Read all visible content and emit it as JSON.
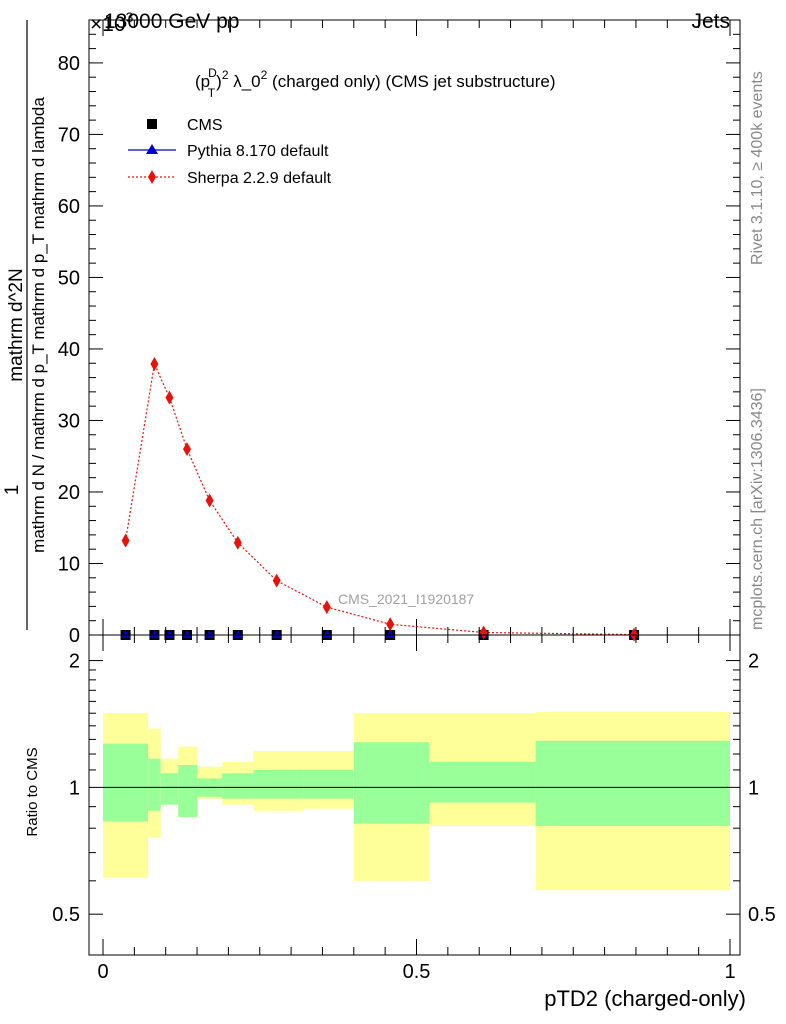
{
  "header": {
    "energy": "13000 GeV pp",
    "exponent": "×10",
    "exponent_power": "3",
    "process": "Jets"
  },
  "side_labels": {
    "rivet": "Rivet 3.1.10, ≥ 400k events",
    "mcplots": "mcplots.cern.ch [arXiv:1306.3436]"
  },
  "watermark": "CMS_2021_I1920187",
  "chart_data": [
    {
      "type": "scatter",
      "panel": "main",
      "title_parts": {
        "p": "(p",
        "sup_d": "D",
        "sub_t": "T",
        "close": ")",
        "sup_2": "2",
        "lambda": " λ_0",
        "sup_2b": "2",
        "rest": " (charged only) (CMS jet substructure)"
      },
      "ylabel_num": "1",
      "ylabel_den": "mathrm d N / mathrm d p_T mathrm d p_T mathrm d lambda",
      "ylabel_right": "mathrm d^2N",
      "xlim": [
        0,
        1
      ],
      "ylim": [
        0,
        86000
      ],
      "yticks": [
        0,
        10000,
        20000,
        30000,
        40000,
        50000,
        60000,
        70000,
        80000
      ],
      "ytick_labels": [
        "0",
        "10",
        "20",
        "30",
        "40",
        "50",
        "60",
        "70",
        "80"
      ],
      "legend": [
        {
          "label": "CMS",
          "marker": "square",
          "color": "#000000"
        },
        {
          "label": "Pythia 8.170 default",
          "marker": "triangle",
          "color": "#0000cc"
        },
        {
          "label": "Sherpa 2.2.9 default",
          "marker": "diamond",
          "color": "#e8120c"
        }
      ],
      "series": [
        {
          "name": "CMS",
          "x": [
            0.036,
            0.082,
            0.106,
            0.134,
            0.17,
            0.215,
            0.277,
            0.357,
            0.458,
            0.607,
            0.847
          ],
          "y": [
            0,
            0,
            0,
            0,
            0,
            0,
            0,
            0,
            0,
            0,
            0
          ]
        },
        {
          "name": "Pythia 8.170 default",
          "x": [
            0.036,
            0.082,
            0.106,
            0.134,
            0.17,
            0.215,
            0.277,
            0.357,
            0.458,
            0.607,
            0.847
          ],
          "y": [
            0,
            0,
            0,
            0,
            0,
            0,
            0,
            0,
            0,
            0,
            0
          ]
        },
        {
          "name": "Sherpa 2.2.9 default",
          "x": [
            0.036,
            0.082,
            0.106,
            0.134,
            0.17,
            0.215,
            0.277,
            0.357,
            0.458,
            0.607,
            0.847
          ],
          "y": [
            13200,
            37900,
            33200,
            26000,
            18800,
            12900,
            7600,
            3900,
            1500,
            350,
            60
          ]
        }
      ]
    },
    {
      "type": "area",
      "panel": "ratio",
      "ylabel": "Ratio to CMS",
      "xlabel": "pTD2 (charged-only)",
      "xlim": [
        0,
        1
      ],
      "ylim": [
        0.4,
        2.3
      ],
      "yticks": [
        0.5,
        1,
        2
      ],
      "ytick_labels": [
        "0.5",
        "1",
        "2"
      ],
      "xticks": [
        0,
        0.5,
        1
      ],
      "xtick_labels": [
        "0",
        "0.5",
        "1"
      ],
      "bins": [
        {
          "lo": 0.0,
          "hi": 0.072,
          "inner": [
            0.83,
            1.27
          ],
          "outer": [
            0.61,
            1.5
          ]
        },
        {
          "lo": 0.072,
          "hi": 0.092,
          "inner": [
            0.88,
            1.17
          ],
          "outer": [
            0.76,
            1.38
          ]
        },
        {
          "lo": 0.092,
          "hi": 0.12,
          "inner": [
            0.91,
            1.08
          ],
          "outer": [
            0.91,
            1.17
          ]
        },
        {
          "lo": 0.12,
          "hi": 0.15,
          "inner": [
            0.85,
            1.13
          ],
          "outer": [
            0.85,
            1.25
          ]
        },
        {
          "lo": 0.15,
          "hi": 0.19,
          "inner": [
            0.95,
            1.05
          ],
          "outer": [
            0.94,
            1.12
          ]
        },
        {
          "lo": 0.19,
          "hi": 0.24,
          "inner": [
            0.94,
            1.08
          ],
          "outer": [
            0.91,
            1.15
          ]
        },
        {
          "lo": 0.24,
          "hi": 0.32,
          "inner": [
            0.94,
            1.1
          ],
          "outer": [
            0.88,
            1.22
          ]
        },
        {
          "lo": 0.32,
          "hi": 0.4,
          "inner": [
            0.94,
            1.1
          ],
          "outer": [
            0.89,
            1.22
          ]
        },
        {
          "lo": 0.4,
          "hi": 0.52,
          "inner": [
            0.82,
            1.28
          ],
          "outer": [
            0.6,
            1.5
          ]
        },
        {
          "lo": 0.52,
          "hi": 0.69,
          "inner": [
            0.92,
            1.15
          ],
          "outer": [
            0.81,
            1.5
          ]
        },
        {
          "lo": 0.69,
          "hi": 1.0,
          "inner": [
            0.81,
            1.29
          ],
          "outer": [
            0.57,
            1.51
          ]
        }
      ],
      "colors": {
        "inner": "#99ff99",
        "outer": "#ffff99"
      }
    }
  ]
}
